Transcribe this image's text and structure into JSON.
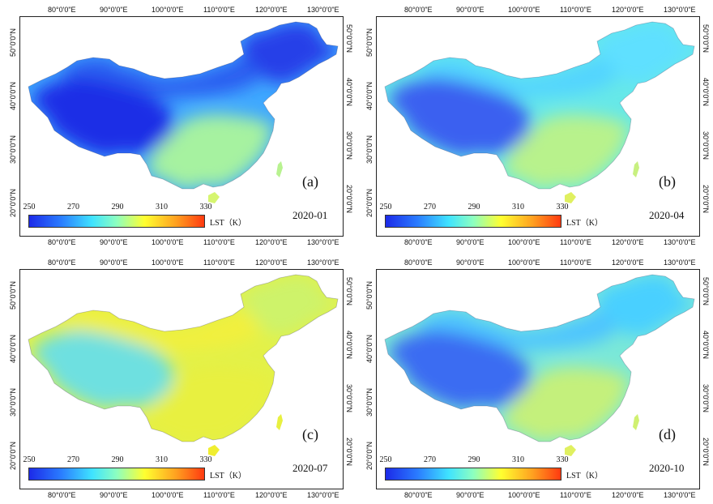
{
  "lon_labels": [
    "80°0'0\"E",
    "90°0'0\"E",
    "100°0'0\"E",
    "110°0'0\"E",
    "120°0'0\"E",
    "130°0'0\"E"
  ],
  "lat_labels": [
    "50°0'0\"N",
    "40°0'0\"N",
    "30°0'0\"N",
    "20°0'0\"N"
  ],
  "colorbar": {
    "ticks": [
      "250",
      "270",
      "290",
      "310",
      "330"
    ],
    "unit": "LST（K）",
    "colors": [
      "#1c2ae8",
      "#2a7bff",
      "#3fe3ff",
      "#8cffc0",
      "#ffff30",
      "#ffa020",
      "#ff3a10"
    ]
  },
  "panels": [
    {
      "letter": "(a)",
      "date": "2020-01",
      "colors": {
        "west": "#1f2fe6",
        "north": "#2b5df0",
        "northeast": "#2540e8",
        "central": "#3fa8ff",
        "south": "#a6f2a0",
        "taiwan": "#b8f290",
        "hainan": "#d6f570"
      }
    },
    {
      "letter": "(b)",
      "date": "2020-04",
      "colors": {
        "west": "#3a60f0",
        "north": "#52d4ff",
        "northeast": "#5ee0ff",
        "central": "#66e8e8",
        "south": "#b8f28c",
        "taiwan": "#c8f080",
        "hainan": "#e0f060"
      }
    },
    {
      "letter": "(c)",
      "date": "2020-07",
      "colors": {
        "west": "#6ee0e0",
        "north": "#f2f03c",
        "northeast": "#cef36a",
        "central": "#e3f148",
        "south": "#e8f040",
        "taiwan": "#e8f040",
        "hainan": "#f0ee30"
      }
    },
    {
      "letter": "(d)",
      "date": "2020-10",
      "colors": {
        "west": "#3a6cf2",
        "north": "#4ec4ff",
        "northeast": "#4ad0ff",
        "central": "#7ae8d8",
        "south": "#c4f07c",
        "taiwan": "#d0f070",
        "hainan": "#e0f060"
      }
    }
  ]
}
